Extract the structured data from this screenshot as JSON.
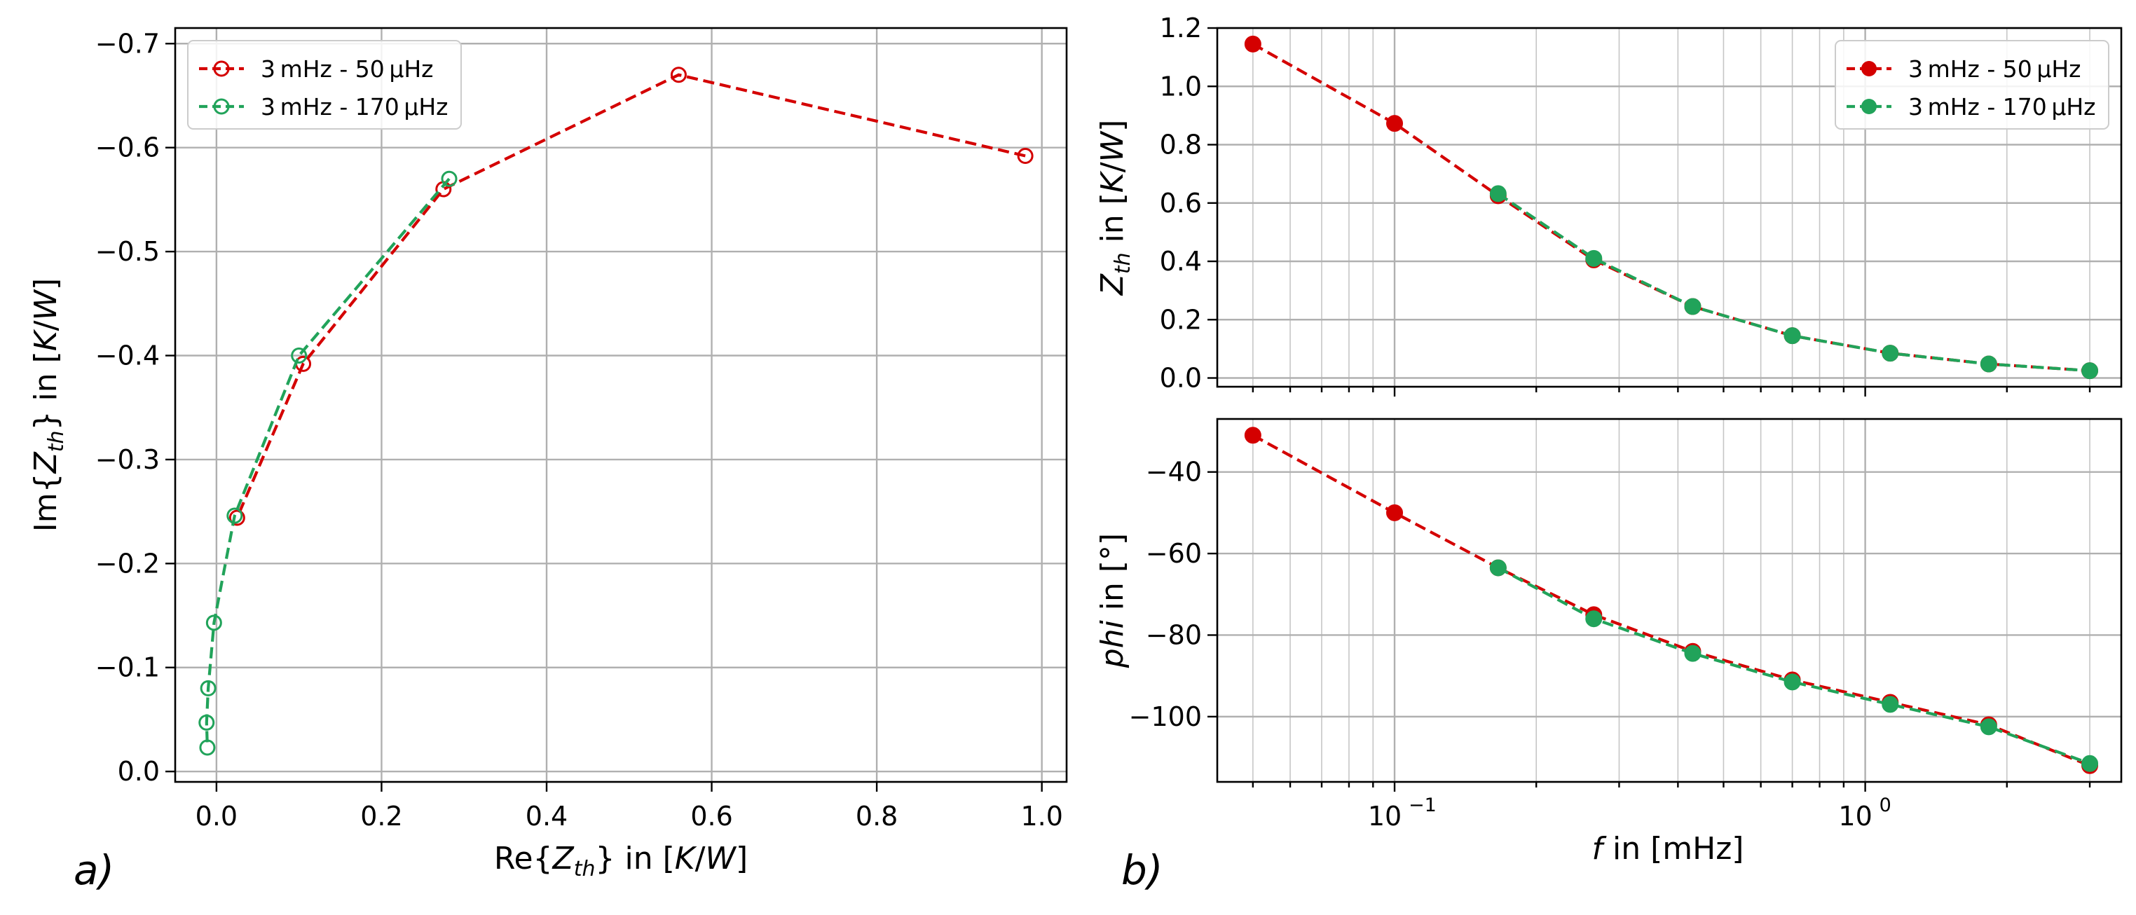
{
  "colors": {
    "red": "#d40000",
    "green": "#21a35a"
  },
  "panels": {
    "a": {
      "label": "a)"
    },
    "b": {
      "label": "b)"
    }
  },
  "chart_data": [
    {
      "type": "scatter",
      "panel": "a",
      "style": "open-markers-dashed-line",
      "xlabel": "Re{Z_th} in [K/W]",
      "ylabel": "Im{Z_th} in [K/W]",
      "xlim": [
        -0.05,
        1.03
      ],
      "ylim": [
        0.01,
        -0.715
      ],
      "y_inverted": true,
      "xticks": [
        0.0,
        0.2,
        0.4,
        0.6,
        0.8,
        1.0
      ],
      "xtick_labels": [
        "0.0",
        "0.2",
        "0.4",
        "0.6",
        "0.8",
        "1.0"
      ],
      "yticks": [
        0.0,
        -0.1,
        -0.2,
        -0.3,
        -0.4,
        -0.5,
        -0.6,
        -0.7
      ],
      "ytick_labels": [
        "0.0",
        "−0.1",
        "−0.2",
        "−0.3",
        "−0.4",
        "−0.5",
        "−0.6",
        "−0.7"
      ],
      "grid": true,
      "legend": "top-left",
      "series": [
        {
          "name": "3 mHz - 50 µHz",
          "color_key": "red",
          "x": [
            0.98,
            0.56,
            0.275,
            0.105,
            0.025
          ],
          "y": [
            -0.592,
            -0.67,
            -0.56,
            -0.392,
            -0.244
          ]
        },
        {
          "name": "3 mHz - 170 µHz",
          "color_key": "green",
          "x": [
            0.282,
            0.1,
            0.022,
            -0.003,
            -0.01,
            -0.012,
            -0.011
          ],
          "y": [
            -0.57,
            -0.4,
            -0.246,
            -0.143,
            -0.08,
            -0.047,
            -0.023
          ]
        }
      ]
    },
    {
      "type": "line",
      "panel": "b-top",
      "style": "filled-markers-dashed-line",
      "xscale": "log",
      "xlim": [
        0.042,
        3.5
      ],
      "ylim": [
        -0.03,
        1.2
      ],
      "ylabel": "Z_th in [K/W]",
      "yticks": [
        0.0,
        0.2,
        0.4,
        0.6,
        0.8,
        1.0,
        1.2
      ],
      "ytick_labels": [
        "0.0",
        "0.2",
        "0.4",
        "0.6",
        "0.8",
        "1.0",
        "1.2"
      ],
      "grid": true,
      "legend": "top-right",
      "series": [
        {
          "name": "3 mHz - 50 µHz",
          "color_key": "red",
          "x": [
            0.05,
            0.1,
            0.166,
            0.265,
            0.43,
            0.7,
            1.13,
            1.83,
            3.0
          ],
          "y": [
            1.145,
            0.873,
            0.625,
            0.405,
            0.245,
            0.145,
            0.085,
            0.048,
            0.025
          ]
        },
        {
          "name": "3 mHz - 170 µHz",
          "color_key": "green",
          "x": [
            0.166,
            0.265,
            0.43,
            0.7,
            1.13,
            1.83,
            3.0
          ],
          "y": [
            0.632,
            0.41,
            0.245,
            0.145,
            0.085,
            0.048,
            0.025
          ]
        }
      ]
    },
    {
      "type": "line",
      "panel": "b-bottom",
      "style": "filled-markers-dashed-line",
      "xscale": "log",
      "xlim": [
        0.042,
        3.5
      ],
      "ylim": [
        -116,
        -27
      ],
      "xlabel": "f in [mHz]",
      "ylabel": "phi in [°]",
      "yticks": [
        -40,
        -60,
        -80,
        -100
      ],
      "ytick_labels": [
        "−40",
        "−60",
        "−80",
        "−100"
      ],
      "xticks": [
        0.1,
        1.0
      ],
      "xtick_labels": [
        "10",
        "10"
      ],
      "xtick_exponents": [
        "−1",
        "0"
      ],
      "grid": true,
      "series": [
        {
          "name": "3 mHz - 50 µHz",
          "color_key": "red",
          "x": [
            0.05,
            0.1,
            0.166,
            0.265,
            0.43,
            0.7,
            1.13,
            1.83,
            3.0
          ],
          "y": [
            -31,
            -50,
            -63.5,
            -75,
            -84,
            -91,
            -96.5,
            -102,
            -112
          ]
        },
        {
          "name": "3 mHz - 170 µHz",
          "color_key": "green",
          "x": [
            0.166,
            0.265,
            0.43,
            0.7,
            1.13,
            1.83,
            3.0
          ],
          "y": [
            -63.5,
            -76,
            -84.5,
            -91.5,
            -97,
            -102.5,
            -111.5
          ]
        }
      ]
    }
  ]
}
